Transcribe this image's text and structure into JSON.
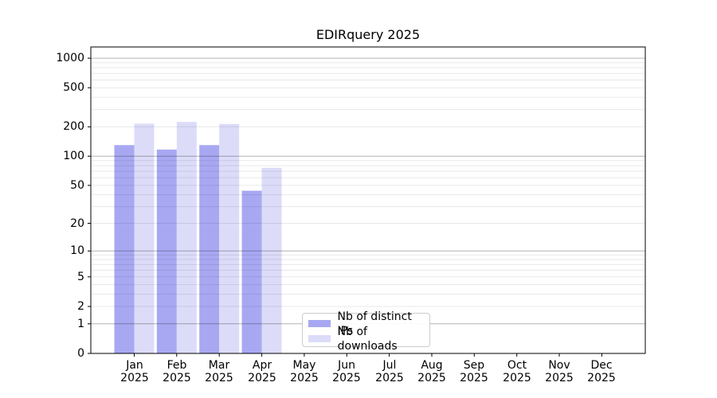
{
  "title": "EDIRquery 2025",
  "chart_data": {
    "type": "bar",
    "title": "EDIRquery 2025",
    "categories": [
      "Jan 2025",
      "Feb 2025",
      "Mar 2025",
      "Apr 2025",
      "May 2025",
      "Jun 2025",
      "Jul 2025",
      "Aug 2025",
      "Sep 2025",
      "Oct 2025",
      "Nov 2025",
      "Dec 2025"
    ],
    "series": [
      {
        "name": "Nb of distinct IPs",
        "color": "#a8a8f2",
        "values": [
          130,
          117,
          130,
          44,
          0,
          0,
          0,
          0,
          0,
          0,
          0,
          0
        ]
      },
      {
        "name": "Nb of downloads",
        "color": "#dcdcf9",
        "values": [
          215,
          224,
          214,
          76,
          0,
          0,
          0,
          0,
          0,
          0,
          0,
          0
        ]
      }
    ],
    "xlabel": "",
    "ylabel": "",
    "yscale": "symlog (position ~ log10(1+value))",
    "yticks": [
      0,
      1,
      2,
      5,
      10,
      20,
      50,
      100,
      200,
      500,
      1000
    ],
    "ylim": [
      0,
      1300
    ],
    "grid": "both",
    "grid_major_at": [
      1,
      10,
      100,
      1000
    ],
    "legend_position": "lower-center-inside"
  },
  "colors": {
    "bar_ips": "#a8a8f2",
    "bar_downloads": "#dcdcf9",
    "grid_major": "rgba(0,0,0,0.30)",
    "grid_minor": "rgba(0,0,0,0.09)",
    "axis": "#000000",
    "text": "#000000",
    "legend_border": "#cccccc"
  },
  "legend": {
    "items": [
      {
        "label": "Nb of distinct IPs"
      },
      {
        "label": "Nb of downloads"
      }
    ]
  }
}
